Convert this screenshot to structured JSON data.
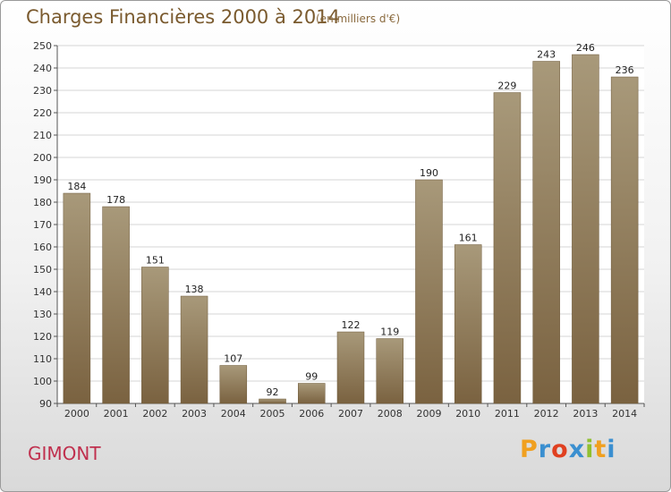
{
  "chart_data": {
    "type": "bar",
    "title": "Charges Financières 2000 à 2014",
    "subtitle": "(en milliers d'€)",
    "categories": [
      "2000",
      "2001",
      "2002",
      "2003",
      "2004",
      "2005",
      "2006",
      "2007",
      "2008",
      "2009",
      "2010",
      "2011",
      "2012",
      "2013",
      "2014"
    ],
    "values": [
      184,
      178,
      151,
      138,
      107,
      92,
      99,
      122,
      119,
      190,
      161,
      229,
      243,
      246,
      236
    ],
    "ylim": [
      90,
      250
    ],
    "yticks": [
      90,
      100,
      110,
      120,
      130,
      140,
      150,
      160,
      170,
      180,
      190,
      200,
      210,
      220,
      230,
      240,
      250
    ],
    "grid": true,
    "bar_color_top": "#a8997a",
    "bar_color_bottom": "#7a6240"
  },
  "footer": {
    "city": "GIMONT",
    "logo_letters": [
      "P",
      "r",
      "o",
      "x",
      "i",
      "t",
      "i"
    ],
    "logo_colors": [
      "#f0a020",
      "#3a8fd0",
      "#e04020",
      "#3a8fd0",
      "#90c030",
      "#f0a020",
      "#3a8fd0"
    ]
  }
}
